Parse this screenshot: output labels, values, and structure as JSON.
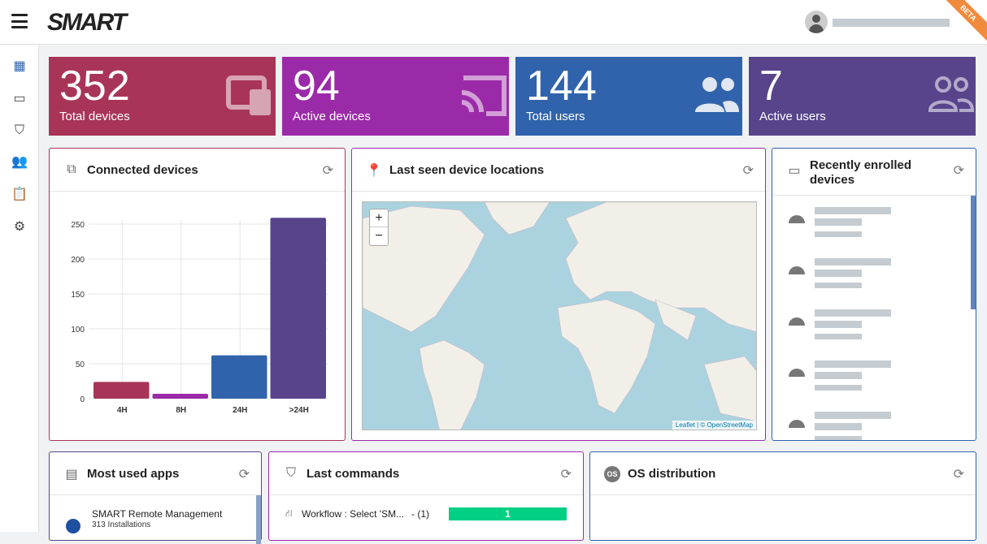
{
  "header": {
    "logo": "SMART",
    "badge": "BETA"
  },
  "sidebar": {
    "items": [
      {
        "icon": "dashboard-icon"
      },
      {
        "icon": "devices-icon"
      },
      {
        "icon": "shield-icon"
      },
      {
        "icon": "users-icon"
      },
      {
        "icon": "clipboard-icon"
      },
      {
        "icon": "gear-icon"
      }
    ]
  },
  "kpis": [
    {
      "value": "352",
      "label": "Total devices",
      "color": "#a83557"
    },
    {
      "value": "94",
      "label": "Active devices",
      "color": "#9b2aa8"
    },
    {
      "value": "144",
      "label": "Total users",
      "color": "#3063ab"
    },
    {
      "value": "7",
      "label": "Active users",
      "color": "#57448b"
    }
  ],
  "connected": {
    "title": "Connected devices"
  },
  "locations": {
    "title": "Last seen device locations",
    "zoom_in": "+",
    "zoom_out": "−",
    "attribution": "Leaflet | © OpenStreetMap"
  },
  "enrolled": {
    "title": "Recently enrolled devices"
  },
  "apps": {
    "title": "Most used apps",
    "items": [
      {
        "name": "SMART Remote Management",
        "installs": "313 Installations"
      }
    ]
  },
  "commands": {
    "title": "Last commands",
    "items": [
      {
        "name": "Workflow : Select 'SM...",
        "count": "- (1)",
        "bar": "1",
        "bar_color": "#00d084"
      }
    ]
  },
  "os": {
    "title": "OS distribution"
  },
  "chart_data": {
    "type": "bar",
    "categories": [
      "4H",
      "8H",
      "24H",
      ">24H"
    ],
    "values": [
      24,
      7,
      62,
      259
    ],
    "colors": [
      "#a83557",
      "#9b2aa8",
      "#3063ab",
      "#57448b"
    ],
    "ylim": [
      0,
      250
    ],
    "yticks": [
      "0",
      "50",
      "100",
      "150",
      "200",
      "250"
    ],
    "grid": true
  }
}
